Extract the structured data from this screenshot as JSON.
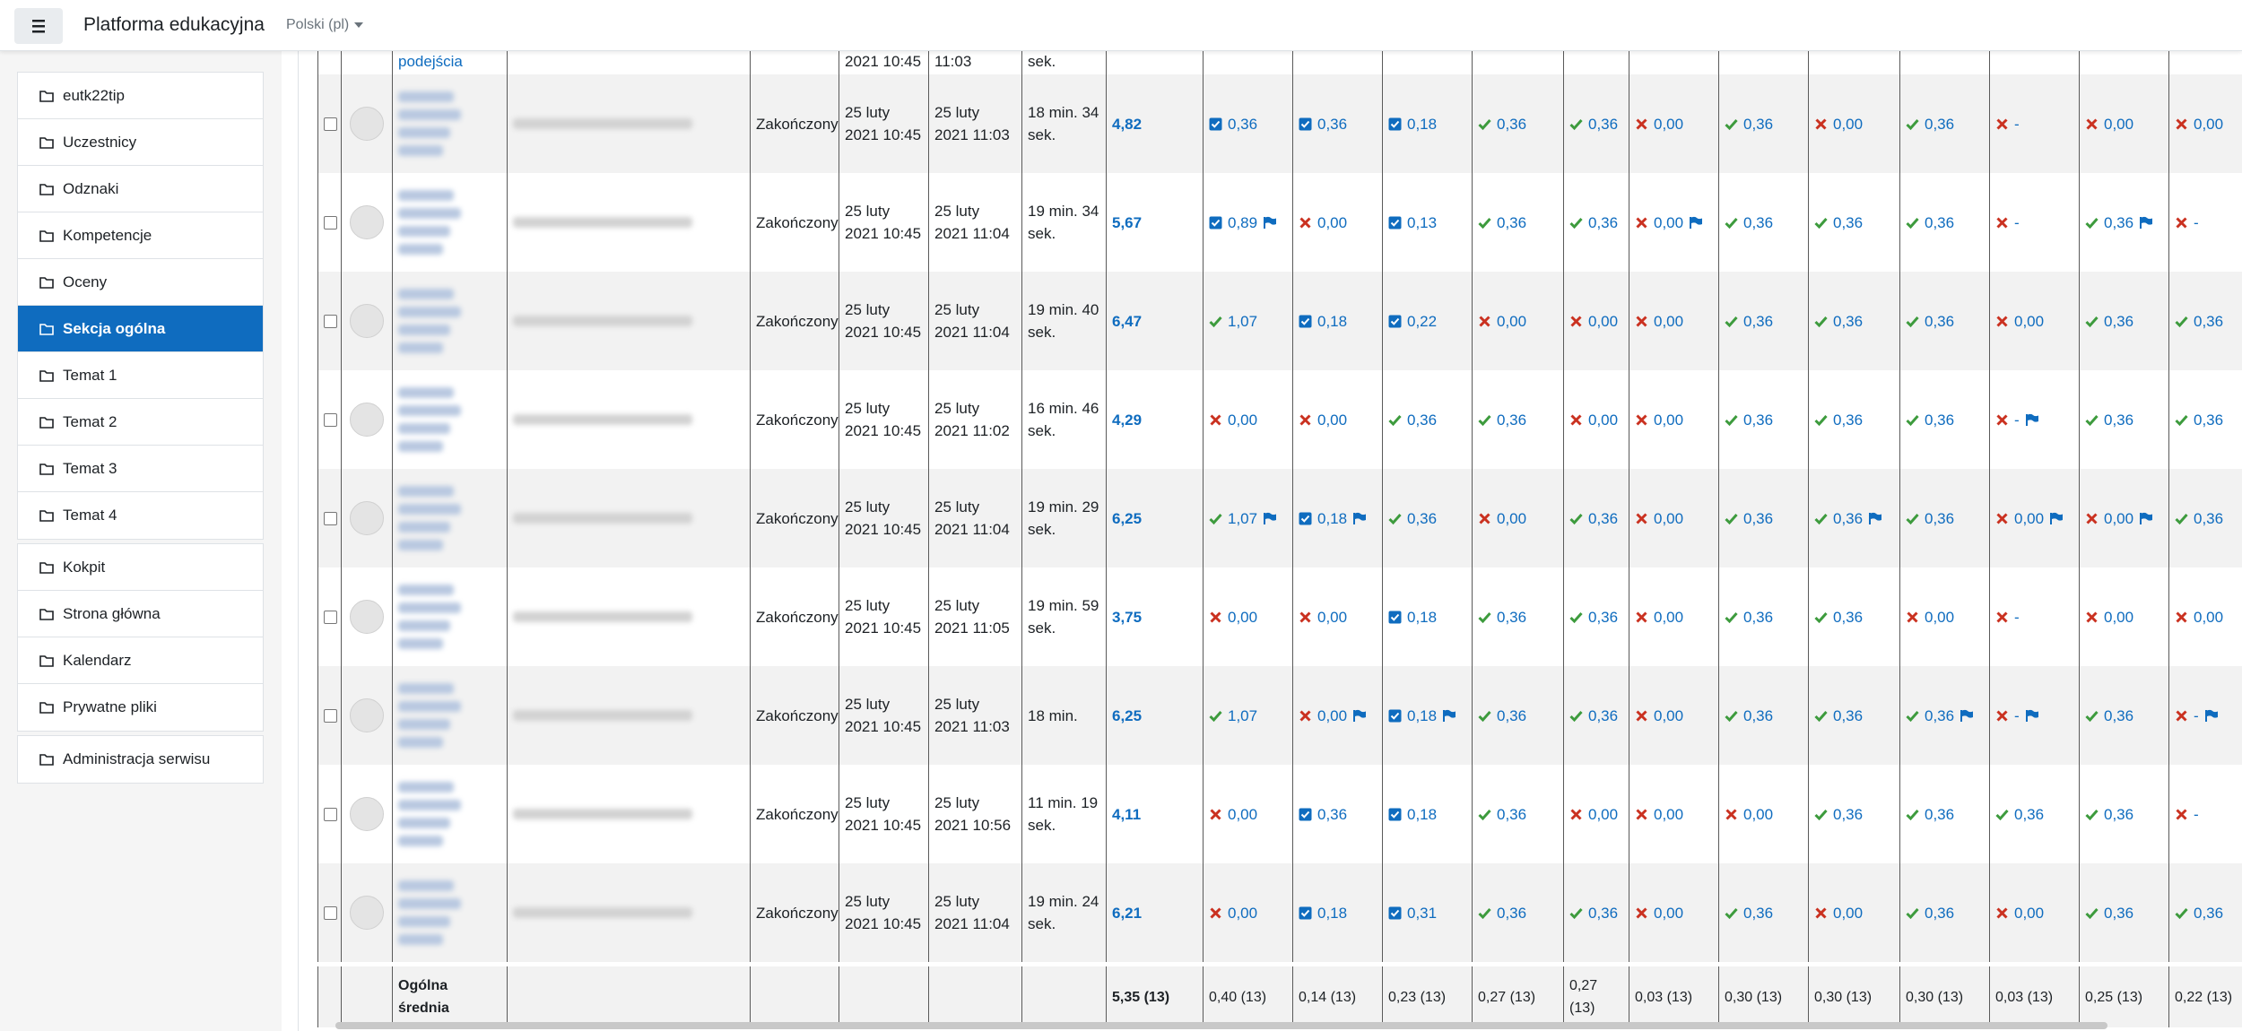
{
  "navbar": {
    "brand": "Platforma edukacyjna",
    "language": "Polski (pl)"
  },
  "sidebar": {
    "groups": [
      [
        {
          "label": "eutk22tip"
        },
        {
          "label": "Uczestnicy"
        },
        {
          "label": "Odznaki"
        },
        {
          "label": "Kompetencje"
        },
        {
          "label": "Oceny"
        },
        {
          "label": "Sekcja ogólna",
          "active": true
        },
        {
          "label": "Temat 1"
        },
        {
          "label": "Temat 2"
        },
        {
          "label": "Temat 3"
        },
        {
          "label": "Temat 4"
        }
      ],
      [
        {
          "label": "Kokpit"
        },
        {
          "label": "Strona główna"
        },
        {
          "label": "Kalendarz"
        },
        {
          "label": "Prywatne pliki"
        }
      ],
      [
        {
          "label": "Administracja serwisu"
        }
      ]
    ]
  },
  "table": {
    "partial_row": {
      "link": "podejścia",
      "started": "2021 10:45",
      "completed": "11:03",
      "duration": "sek."
    },
    "rows": [
      {
        "status": "Zakończony",
        "started": "25 luty 2021 10:45",
        "completed": "25 luty 2021 11:03",
        "duration": "18 min. 34 sek.",
        "grade": "4,82",
        "questions": [
          {
            "mark": "partial",
            "value": "0,36"
          },
          {
            "mark": "partial",
            "value": "0,36"
          },
          {
            "mark": "partial",
            "value": "0,18"
          },
          {
            "mark": "correct",
            "value": "0,36"
          },
          {
            "mark": "correct",
            "value": "0,36"
          },
          {
            "mark": "incorrect",
            "value": "0,00"
          },
          {
            "mark": "correct",
            "value": "0,36"
          },
          {
            "mark": "incorrect",
            "value": "0,00"
          },
          {
            "mark": "correct",
            "value": "0,36"
          },
          {
            "mark": "incorrect",
            "value": "-"
          },
          {
            "mark": "incorrect",
            "value": "0,00"
          },
          {
            "mark": "incorrect",
            "value": "0,00"
          }
        ]
      },
      {
        "status": "Zakończony",
        "started": "25 luty 2021 10:45",
        "completed": "25 luty 2021 11:04",
        "duration": "19 min. 34 sek.",
        "grade": "5,67",
        "questions": [
          {
            "mark": "partial",
            "value": "0,89",
            "flag": true
          },
          {
            "mark": "incorrect",
            "value": "0,00"
          },
          {
            "mark": "partial",
            "value": "0,13"
          },
          {
            "mark": "correct",
            "value": "0,36"
          },
          {
            "mark": "correct",
            "value": "0,36"
          },
          {
            "mark": "incorrect",
            "value": "0,00",
            "flag": true
          },
          {
            "mark": "correct",
            "value": "0,36"
          },
          {
            "mark": "correct",
            "value": "0,36"
          },
          {
            "mark": "correct",
            "value": "0,36"
          },
          {
            "mark": "incorrect",
            "value": "-"
          },
          {
            "mark": "correct",
            "value": "0,36",
            "flag": true
          },
          {
            "mark": "incorrect",
            "value": "-"
          }
        ]
      },
      {
        "status": "Zakończony",
        "started": "25 luty 2021 10:45",
        "completed": "25 luty 2021 11:04",
        "duration": "19 min. 40 sek.",
        "grade": "6,47",
        "questions": [
          {
            "mark": "correct",
            "value": "1,07"
          },
          {
            "mark": "partial",
            "value": "0,18"
          },
          {
            "mark": "partial",
            "value": "0,22"
          },
          {
            "mark": "incorrect",
            "value": "0,00"
          },
          {
            "mark": "incorrect",
            "value": "0,00"
          },
          {
            "mark": "incorrect",
            "value": "0,00"
          },
          {
            "mark": "correct",
            "value": "0,36"
          },
          {
            "mark": "correct",
            "value": "0,36"
          },
          {
            "mark": "correct",
            "value": "0,36"
          },
          {
            "mark": "incorrect",
            "value": "0,00"
          },
          {
            "mark": "correct",
            "value": "0,36"
          },
          {
            "mark": "correct",
            "value": "0,36"
          }
        ]
      },
      {
        "status": "Zakończony",
        "started": "25 luty 2021 10:45",
        "completed": "25 luty 2021 11:02",
        "duration": "16 min. 46 sek.",
        "grade": "4,29",
        "questions": [
          {
            "mark": "incorrect",
            "value": "0,00"
          },
          {
            "mark": "incorrect",
            "value": "0,00"
          },
          {
            "mark": "correct",
            "value": "0,36"
          },
          {
            "mark": "correct",
            "value": "0,36"
          },
          {
            "mark": "incorrect",
            "value": "0,00"
          },
          {
            "mark": "incorrect",
            "value": "0,00"
          },
          {
            "mark": "correct",
            "value": "0,36"
          },
          {
            "mark": "correct",
            "value": "0,36"
          },
          {
            "mark": "correct",
            "value": "0,36"
          },
          {
            "mark": "incorrect",
            "value": "-",
            "flag": true
          },
          {
            "mark": "correct",
            "value": "0,36"
          },
          {
            "mark": "correct",
            "value": "0,36"
          }
        ]
      },
      {
        "status": "Zakończony",
        "started": "25 luty 2021 10:45",
        "completed": "25 luty 2021 11:04",
        "duration": "19 min. 29 sek.",
        "grade": "6,25",
        "questions": [
          {
            "mark": "correct",
            "value": "1,07",
            "flag": true
          },
          {
            "mark": "partial",
            "value": "0,18",
            "flag": true
          },
          {
            "mark": "correct",
            "value": "0,36"
          },
          {
            "mark": "incorrect",
            "value": "0,00"
          },
          {
            "mark": "correct",
            "value": "0,36"
          },
          {
            "mark": "incorrect",
            "value": "0,00"
          },
          {
            "mark": "correct",
            "value": "0,36"
          },
          {
            "mark": "correct",
            "value": "0,36",
            "flag": true
          },
          {
            "mark": "correct",
            "value": "0,36"
          },
          {
            "mark": "incorrect",
            "value": "0,00",
            "flag": true
          },
          {
            "mark": "incorrect",
            "value": "0,00",
            "flag": true
          },
          {
            "mark": "correct",
            "value": "0,36"
          }
        ]
      },
      {
        "status": "Zakończony",
        "started": "25 luty 2021 10:45",
        "completed": "25 luty 2021 11:05",
        "duration": "19 min. 59 sek.",
        "grade": "3,75",
        "questions": [
          {
            "mark": "incorrect",
            "value": "0,00"
          },
          {
            "mark": "incorrect",
            "value": "0,00"
          },
          {
            "mark": "partial",
            "value": "0,18"
          },
          {
            "mark": "correct",
            "value": "0,36"
          },
          {
            "mark": "correct",
            "value": "0,36"
          },
          {
            "mark": "incorrect",
            "value": "0,00"
          },
          {
            "mark": "correct",
            "value": "0,36"
          },
          {
            "mark": "correct",
            "value": "0,36"
          },
          {
            "mark": "incorrect",
            "value": "0,00"
          },
          {
            "mark": "incorrect",
            "value": "-"
          },
          {
            "mark": "incorrect",
            "value": "0,00"
          },
          {
            "mark": "incorrect",
            "value": "0,00"
          }
        ]
      },
      {
        "status": "Zakończony",
        "started": "25 luty 2021 10:45",
        "completed": "25 luty 2021 11:03",
        "duration": "18 min.",
        "grade": "6,25",
        "questions": [
          {
            "mark": "correct",
            "value": "1,07"
          },
          {
            "mark": "incorrect",
            "value": "0,00",
            "flag": true
          },
          {
            "mark": "partial",
            "value": "0,18",
            "flag": true
          },
          {
            "mark": "correct",
            "value": "0,36"
          },
          {
            "mark": "correct",
            "value": "0,36"
          },
          {
            "mark": "incorrect",
            "value": "0,00"
          },
          {
            "mark": "correct",
            "value": "0,36"
          },
          {
            "mark": "correct",
            "value": "0,36"
          },
          {
            "mark": "correct",
            "value": "0,36",
            "flag": true
          },
          {
            "mark": "incorrect",
            "value": "-",
            "flag": true
          },
          {
            "mark": "correct",
            "value": "0,36"
          },
          {
            "mark": "incorrect",
            "value": "-",
            "flag": true
          }
        ]
      },
      {
        "status": "Zakończony",
        "started": "25 luty 2021 10:45",
        "completed": "25 luty 2021 10:56",
        "duration": "11 min. 19 sek.",
        "grade": "4,11",
        "questions": [
          {
            "mark": "incorrect",
            "value": "0,00"
          },
          {
            "mark": "partial",
            "value": "0,36"
          },
          {
            "mark": "partial",
            "value": "0,18"
          },
          {
            "mark": "correct",
            "value": "0,36"
          },
          {
            "mark": "incorrect",
            "value": "0,00"
          },
          {
            "mark": "incorrect",
            "value": "0,00"
          },
          {
            "mark": "incorrect",
            "value": "0,00"
          },
          {
            "mark": "correct",
            "value": "0,36"
          },
          {
            "mark": "correct",
            "value": "0,36"
          },
          {
            "mark": "correct",
            "value": "0,36"
          },
          {
            "mark": "correct",
            "value": "0,36"
          },
          {
            "mark": "incorrect",
            "value": "-"
          }
        ]
      },
      {
        "status": "Zakończony",
        "started": "25 luty 2021 10:45",
        "completed": "25 luty 2021 11:04",
        "duration": "19 min. 24 sek.",
        "grade": "6,21",
        "questions": [
          {
            "mark": "incorrect",
            "value": "0,00"
          },
          {
            "mark": "partial",
            "value": "0,18"
          },
          {
            "mark": "partial",
            "value": "0,31"
          },
          {
            "mark": "correct",
            "value": "0,36"
          },
          {
            "mark": "correct",
            "value": "0,36"
          },
          {
            "mark": "incorrect",
            "value": "0,00"
          },
          {
            "mark": "correct",
            "value": "0,36"
          },
          {
            "mark": "incorrect",
            "value": "0,00"
          },
          {
            "mark": "correct",
            "value": "0,36"
          },
          {
            "mark": "incorrect",
            "value": "0,00"
          },
          {
            "mark": "correct",
            "value": "0,36"
          },
          {
            "mark": "correct",
            "value": "0,36"
          }
        ]
      }
    ],
    "average": {
      "label": "Ogólna średnia",
      "grade": "5,35 (13)",
      "questions": [
        "0,40 (13)",
        "0,14 (13)",
        "0,23 (13)",
        "0,27 (13)",
        "0,27 (13)",
        "0,03 (13)",
        "0,30 (13)",
        "0,30 (13)",
        "0,30 (13)",
        "0,03 (13)",
        "0,25 (13)",
        "0,22 (13)"
      ]
    }
  }
}
